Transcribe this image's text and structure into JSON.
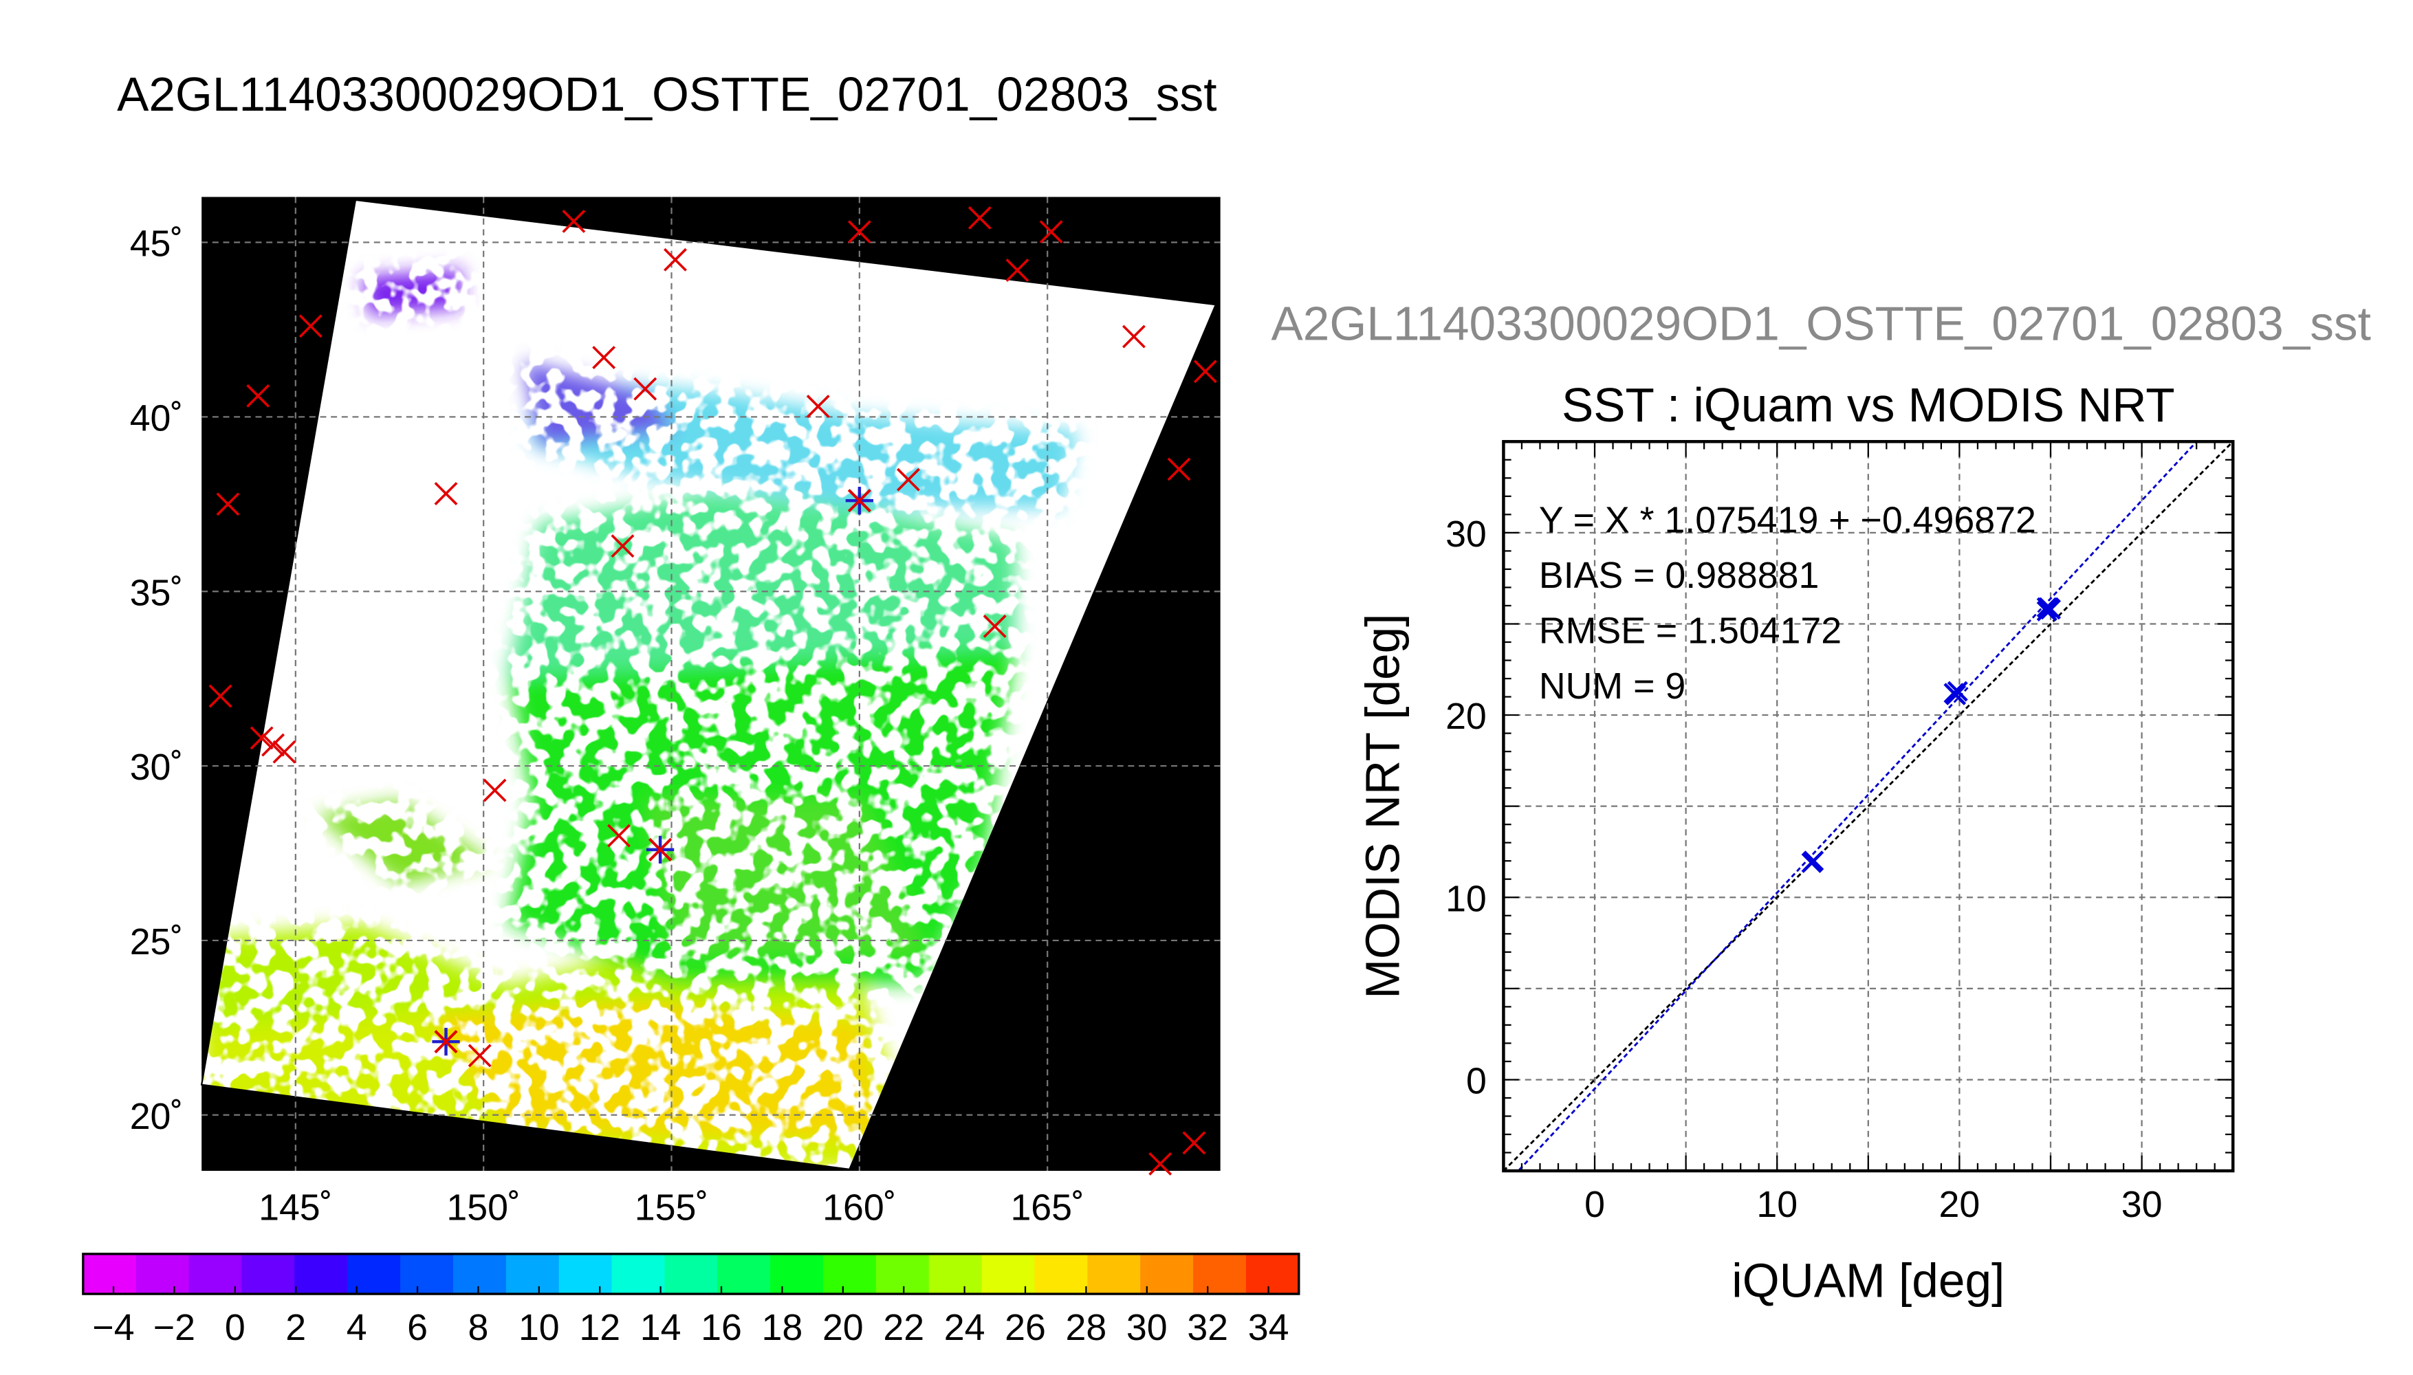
{
  "page_title": "A2GL11403300029OD1_OSTTE_02701_02803_sst",
  "map": {
    "lat_labels": [
      "45˚",
      "40˚",
      "35˚",
      "30˚",
      "25˚",
      "20˚"
    ],
    "lat_values": [
      45,
      40,
      35,
      30,
      25,
      20
    ],
    "lon_labels": [
      "145˚",
      "150˚",
      "155˚",
      "160˚",
      "165˚"
    ],
    "lon_values": [
      145,
      150,
      155,
      160,
      165
    ],
    "lon_range": [
      142.5,
      169.6
    ],
    "lat_range": [
      18.4,
      46.3
    ],
    "matchups": [
      [
        154.7,
        27.6
      ],
      [
        160.0,
        37.6
      ],
      [
        149.0,
        22.1
      ]
    ],
    "insitu_marks": [
      [
        143.2,
        37.5
      ],
      [
        143.0,
        32.0
      ],
      [
        144.1,
        30.8
      ],
      [
        144.4,
        30.6
      ],
      [
        144.7,
        30.4
      ],
      [
        144.0,
        40.6
      ],
      [
        145.4,
        42.6
      ],
      [
        149.0,
        37.8
      ],
      [
        150.3,
        29.3
      ],
      [
        149.9,
        21.7
      ],
      [
        152.4,
        45.6
      ],
      [
        153.2,
        41.7
      ],
      [
        155.1,
        44.5
      ],
      [
        154.3,
        40.8
      ],
      [
        153.7,
        36.3
      ],
      [
        153.6,
        28.0
      ],
      [
        158.9,
        40.3
      ],
      [
        160.0,
        45.3
      ],
      [
        161.3,
        38.2
      ],
      [
        163.2,
        45.7
      ],
      [
        165.1,
        45.3
      ],
      [
        164.2,
        44.2
      ],
      [
        163.6,
        34.0
      ],
      [
        167.3,
        42.3
      ],
      [
        169.2,
        41.3
      ],
      [
        168.5,
        38.5
      ],
      [
        168.9,
        19.2
      ],
      [
        168.0,
        18.6
      ]
    ]
  },
  "colorbar": {
    "min": -5,
    "max": 35,
    "step": 2,
    "tick_labels": [
      "−4",
      "−2",
      "0",
      "2",
      "4",
      "6",
      "8",
      "10",
      "12",
      "14",
      "16",
      "18",
      "20",
      "22",
      "24",
      "26",
      "28",
      "30",
      "32",
      "34"
    ],
    "tick_values": [
      -4,
      -2,
      0,
      2,
      4,
      6,
      8,
      10,
      12,
      14,
      16,
      18,
      20,
      22,
      24,
      26,
      28,
      30,
      32,
      34
    ],
    "colors": [
      "#e800ff",
      "#c000ff",
      "#9800ff",
      "#6a00ff",
      "#3c00ff",
      "#0028ff",
      "#0050ff",
      "#0078ff",
      "#00a8ff",
      "#00d8ff",
      "#00ffd8",
      "#00ffa0",
      "#00ff60",
      "#00ff20",
      "#30ff00",
      "#70ff00",
      "#b0ff00",
      "#e0ff00",
      "#ffe600",
      "#ffc000",
      "#ff9000",
      "#ff6000",
      "#ff3000"
    ]
  },
  "scatter_panel_title": "A2GL11403300029OD1_OSTTE_02701_02803_sst",
  "chart_data": {
    "type": "scatter",
    "title": "SST : iQuam vs MODIS NRT",
    "xlabel": "iQUAM [deg]",
    "ylabel": "MODIS NRT [deg]",
    "xlim": [
      -5,
      35
    ],
    "ylim": [
      -5,
      35
    ],
    "xticks": [
      0,
      10,
      20,
      30
    ],
    "yticks": [
      0,
      10,
      20,
      30
    ],
    "grid": true,
    "annotations": [
      "Y = X * 1.075419 + −0.496872",
      "BIAS = 0.988881",
      "RMSE = 1.504172",
      "NUM = 9"
    ],
    "regression": {
      "slope": 1.075419,
      "intercept": -0.496872
    },
    "points": [
      {
        "x": 11.9,
        "y": 11.9
      },
      {
        "x": 12.0,
        "y": 12.0
      },
      {
        "x": 19.8,
        "y": 21.1
      },
      {
        "x": 19.9,
        "y": 21.3
      },
      {
        "x": 19.7,
        "y": 21.2
      },
      {
        "x": 24.8,
        "y": 25.7
      },
      {
        "x": 24.9,
        "y": 25.9
      },
      {
        "x": 25.0,
        "y": 25.8
      },
      {
        "x": 24.8,
        "y": 25.9
      }
    ],
    "marker_color": "#0000dd",
    "fit_color": "#0000cc",
    "identity_color": "#000000"
  }
}
